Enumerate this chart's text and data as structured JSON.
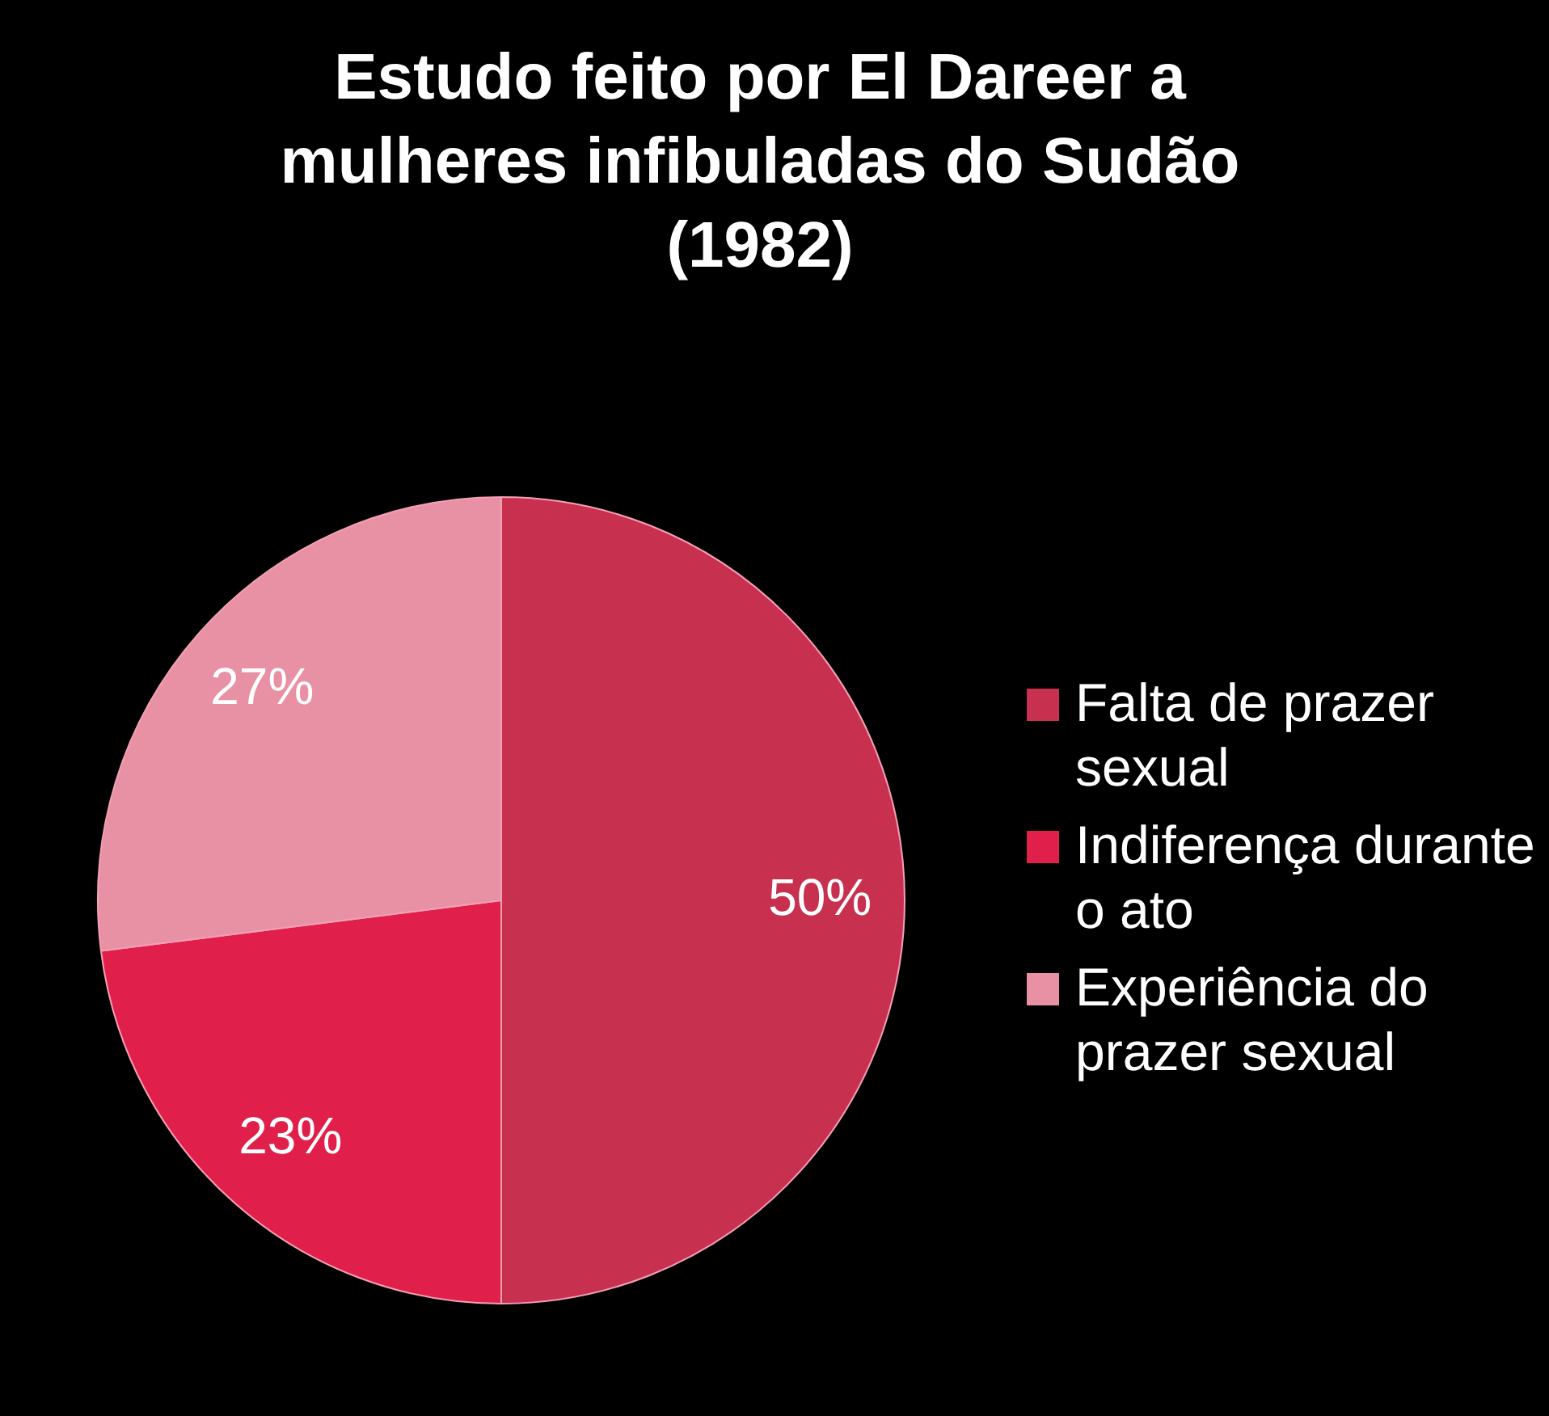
{
  "chart_data": {
    "type": "pie",
    "title": "Estudo feito por El Dareer a mulheres infibuladas do Sudão (1982)",
    "categories": [
      "Falta de prazer sexual",
      "Indiferença durante o ato",
      "Experiência do prazer sexual"
    ],
    "values": [
      50,
      23,
      27
    ],
    "value_labels": [
      "50%",
      "23%",
      "27%"
    ],
    "colors": [
      "#c83050",
      "#e0204a",
      "#e890a4"
    ],
    "legend": "right"
  }
}
